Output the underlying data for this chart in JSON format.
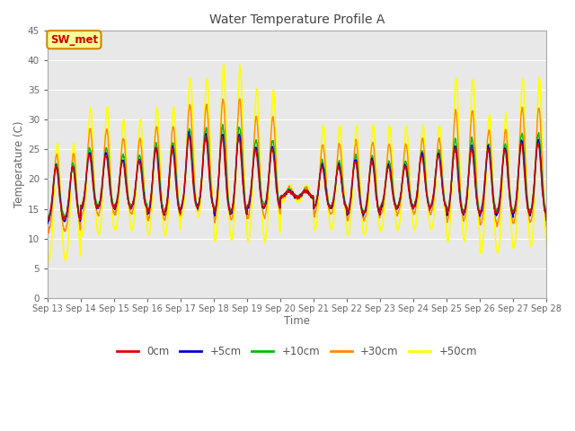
{
  "title": "Water Temperature Profile A",
  "xlabel": "Time",
  "ylabel": "Temperature (C)",
  "ylim": [
    0,
    45
  ],
  "yticks": [
    0,
    5,
    10,
    15,
    20,
    25,
    30,
    35,
    40,
    45
  ],
  "x_tick_labels": [
    "Sep 13",
    "Sep 14",
    "Sep 15",
    "Sep 16",
    "Sep 17",
    "Sep 18",
    "Sep 19",
    "Sep 20",
    "Sep 21",
    "Sep 22",
    "Sep 23",
    "Sep 24",
    "Sep 25",
    "Sep 26",
    "Sep 27",
    "Sep 28"
  ],
  "series_order": [
    "0cm",
    "+5cm",
    "+10cm",
    "+30cm",
    "+50cm"
  ],
  "series": {
    "0cm": {
      "color": "#dd0000",
      "linewidth": 1.0
    },
    "+5cm": {
      "color": "#0000cc",
      "linewidth": 1.0
    },
    "+10cm": {
      "color": "#00bb00",
      "linewidth": 1.0
    },
    "+30cm": {
      "color": "#ff8800",
      "linewidth": 1.0
    },
    "+50cm": {
      "color": "#ffff00",
      "linewidth": 1.2
    }
  },
  "annotation_text": "SW_met",
  "annotation_color": "#cc0000",
  "annotation_bg": "#ffff99",
  "annotation_border": "#cc8800",
  "plot_bg": "#e8e8e8",
  "grid_color": "#ffffff",
  "n_days": 15,
  "points_per_day": 96,
  "peak_heights_50cm": [
    26,
    32,
    30,
    32,
    37,
    39,
    35,
    19,
    29,
    29,
    29,
    29,
    37,
    31,
    37,
    40
  ],
  "trough_depths_50cm": [
    6,
    10,
    11,
    10,
    13,
    9,
    9,
    16,
    11,
    10,
    11,
    11,
    9,
    7,
    8,
    7
  ],
  "peak_heights_0cm": [
    22,
    24,
    23,
    25,
    27,
    27,
    25,
    18,
    22,
    23,
    22,
    24,
    25,
    25,
    26,
    28
  ],
  "trough_depths_0cm": [
    13,
    15,
    15,
    14,
    15,
    14,
    15,
    17,
    15,
    14,
    15,
    15,
    14,
    14,
    14,
    13
  ]
}
